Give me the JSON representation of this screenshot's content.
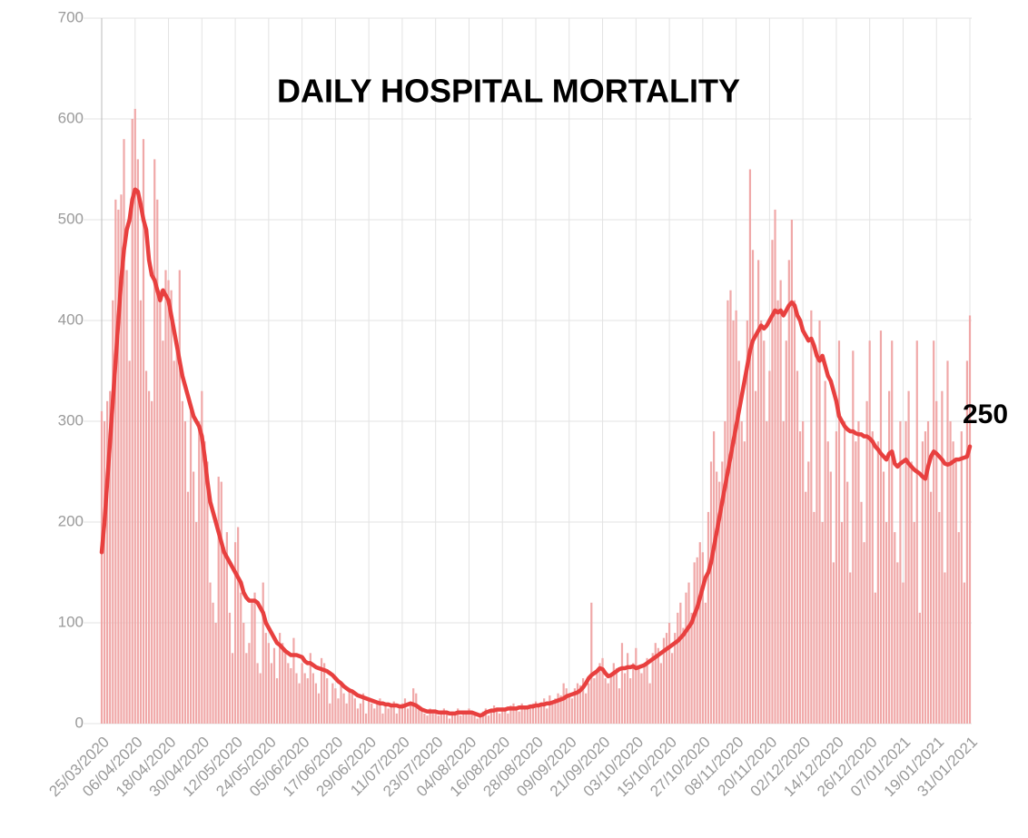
{
  "chart_data": {
    "type": "bar",
    "title": "DAILY HOSPITAL MORTALITY",
    "annotation": "250",
    "categories": [
      "25/03/2020",
      null,
      null,
      null,
      null,
      null,
      null,
      null,
      null,
      null,
      null,
      null,
      "06/04/2020",
      null,
      null,
      null,
      null,
      null,
      null,
      null,
      null,
      null,
      null,
      null,
      "18/04/2020",
      null,
      null,
      null,
      null,
      null,
      null,
      null,
      null,
      null,
      null,
      null,
      "30/04/2020",
      null,
      null,
      null,
      null,
      null,
      null,
      null,
      null,
      null,
      null,
      null,
      "12/05/2020",
      null,
      null,
      null,
      null,
      null,
      null,
      null,
      null,
      null,
      null,
      null,
      "24/05/2020",
      null,
      null,
      null,
      null,
      null,
      null,
      null,
      null,
      null,
      null,
      null,
      "05/06/2020",
      null,
      null,
      null,
      null,
      null,
      null,
      null,
      null,
      null,
      null,
      null,
      "17/06/2020",
      null,
      null,
      null,
      null,
      null,
      null,
      null,
      null,
      null,
      null,
      null,
      "29/06/2020",
      null,
      null,
      null,
      null,
      null,
      null,
      null,
      null,
      null,
      null,
      null,
      "11/07/2020",
      null,
      null,
      null,
      null,
      null,
      null,
      null,
      null,
      null,
      null,
      null,
      "23/07/2020",
      null,
      null,
      null,
      null,
      null,
      null,
      null,
      null,
      null,
      null,
      null,
      "04/08/2020",
      null,
      null,
      null,
      null,
      null,
      null,
      null,
      null,
      null,
      null,
      null,
      "16/08/2020",
      null,
      null,
      null,
      null,
      null,
      null,
      null,
      null,
      null,
      null,
      null,
      "28/08/2020",
      null,
      null,
      null,
      null,
      null,
      null,
      null,
      null,
      null,
      null,
      null,
      "09/09/2020",
      null,
      null,
      null,
      null,
      null,
      null,
      null,
      null,
      null,
      null,
      null,
      "21/09/2020",
      null,
      null,
      null,
      null,
      null,
      null,
      null,
      null,
      null,
      null,
      null,
      "03/10/2020",
      null,
      null,
      null,
      null,
      null,
      null,
      null,
      null,
      null,
      null,
      null,
      "15/10/2020",
      null,
      null,
      null,
      null,
      null,
      null,
      null,
      null,
      null,
      null,
      null,
      "27/10/2020",
      null,
      null,
      null,
      null,
      null,
      null,
      null,
      null,
      null,
      null,
      null,
      "08/11/2020",
      null,
      null,
      null,
      null,
      null,
      null,
      null,
      null,
      null,
      null,
      null,
      "20/11/2020",
      null,
      null,
      null,
      null,
      null,
      null,
      null,
      null,
      null,
      null,
      null,
      "02/12/2020",
      null,
      null,
      null,
      null,
      null,
      null,
      null,
      null,
      null,
      null,
      null,
      "14/12/2020",
      null,
      null,
      null,
      null,
      null,
      null,
      null,
      null,
      null,
      null,
      null,
      "26/12/2020",
      null,
      null,
      null,
      null,
      null,
      null,
      null,
      null,
      null,
      null,
      null,
      "07/01/2021",
      null,
      null,
      null,
      null,
      null,
      null,
      null,
      null,
      null,
      null,
      null,
      "19/01/2021",
      null,
      null,
      null,
      null,
      null,
      null,
      null,
      null,
      null,
      null,
      null,
      "31/01/2021"
    ],
    "series": [
      {
        "type": "bar",
        "color": "#f0a8a8",
        "values": [
          310,
          300,
          320,
          330,
          420,
          520,
          510,
          525,
          580,
          450,
          360,
          600,
          610,
          560,
          420,
          580,
          350,
          330,
          320,
          560,
          520,
          430,
          380,
          450,
          440,
          430,
          360,
          380,
          450,
          320,
          300,
          230,
          310,
          250,
          200,
          300,
          330,
          280,
          260,
          140,
          120,
          100,
          245,
          240,
          175,
          190,
          110,
          70,
          180,
          195,
          130,
          100,
          70,
          80,
          120,
          130,
          60,
          50,
          140,
          90,
          80,
          60,
          75,
          45,
          90,
          80,
          70,
          60,
          55,
          85,
          50,
          40,
          60,
          50,
          45,
          70,
          50,
          40,
          30,
          65,
          60,
          45,
          20,
          40,
          35,
          25,
          40,
          30,
          20,
          35,
          30,
          25,
          15,
          20,
          30,
          10,
          25,
          20,
          15,
          20,
          25,
          10,
          20,
          15,
          18,
          22,
          10,
          15,
          20,
          25,
          15,
          20,
          35,
          30,
          15,
          12,
          10,
          8,
          15,
          10,
          12,
          8,
          10,
          15,
          10,
          5,
          12,
          10,
          15,
          8,
          10,
          12,
          15,
          10,
          8,
          5,
          10,
          12,
          15,
          8,
          12,
          18,
          15,
          10,
          16,
          14,
          10,
          18,
          20,
          15,
          12,
          20,
          14,
          18,
          15,
          20,
          22,
          18,
          20,
          25,
          15,
          28,
          20,
          25,
          30,
          28,
          40,
          35,
          30,
          25,
          35,
          40,
          38,
          45,
          30,
          40,
          120,
          45,
          50,
          60,
          65,
          45,
          40,
          50,
          60,
          55,
          35,
          80,
          50,
          70,
          45,
          60,
          75,
          55,
          50,
          60,
          65,
          40,
          70,
          80,
          75,
          60,
          85,
          90,
          100,
          70,
          90,
          110,
          120,
          95,
          130,
          140,
          110,
          160,
          165,
          180,
          170,
          120,
          210,
          260,
          290,
          250,
          240,
          260,
          300,
          420,
          430,
          400,
          410,
          360,
          300,
          280,
          400,
          550,
          470,
          330,
          460,
          400,
          380,
          300,
          350,
          480,
          510,
          420,
          440,
          300,
          380,
          460,
          500,
          420,
          350,
          290,
          300,
          230,
          260,
          410,
          210,
          370,
          400,
          200,
          340,
          280,
          250,
          160,
          290,
          380,
          200,
          300,
          240,
          150,
          370,
          280,
          300,
          220,
          180,
          320,
          380,
          290,
          130,
          280,
          390,
          250,
          200,
          330,
          380,
          190,
          160,
          300,
          140,
          300,
          330,
          260,
          200,
          380,
          110,
          280,
          290,
          300,
          230,
          380,
          320,
          210,
          330,
          150,
          360,
          300,
          280,
          260,
          190,
          290,
          140,
          360,
          405
        ]
      },
      {
        "type": "line",
        "color": "#e8403f",
        "values": [
          170,
          200,
          240,
          280,
          320,
          360,
          400,
          440,
          470,
          490,
          500,
          520,
          530,
          528,
          515,
          500,
          490,
          460,
          445,
          440,
          430,
          420,
          430,
          425,
          420,
          405,
          390,
          375,
          360,
          345,
          335,
          325,
          315,
          305,
          300,
          295,
          285,
          265,
          240,
          220,
          210,
          200,
          190,
          180,
          170,
          165,
          160,
          155,
          150,
          145,
          140,
          130,
          125,
          122,
          122,
          122,
          120,
          115,
          110,
          100,
          95,
          90,
          85,
          80,
          78,
          75,
          72,
          70,
          68,
          68,
          68,
          67,
          66,
          62,
          60,
          60,
          58,
          56,
          55,
          54,
          53,
          52,
          50,
          48,
          45,
          42,
          40,
          37,
          35,
          33,
          32,
          30,
          28,
          27,
          26,
          25,
          24,
          23,
          22,
          21,
          20,
          20,
          19,
          19,
          18,
          18,
          18,
          17,
          17,
          18,
          19,
          20,
          19,
          18,
          16,
          14,
          13,
          12,
          12,
          12,
          12,
          11,
          11,
          11,
          11,
          10,
          10,
          10,
          11,
          11,
          11,
          11,
          11,
          11,
          10,
          9,
          8,
          9,
          11,
          12,
          13,
          13,
          14,
          14,
          14,
          14,
          15,
          15,
          15,
          15,
          16,
          16,
          16,
          16,
          17,
          17,
          18,
          18,
          19,
          19,
          20,
          20,
          21,
          22,
          23,
          24,
          25,
          27,
          28,
          29,
          30,
          31,
          33,
          36,
          40,
          45,
          48,
          50,
          52,
          55,
          54,
          50,
          47,
          48,
          50,
          52,
          54,
          55,
          55,
          56,
          56,
          57,
          55,
          56,
          57,
          58,
          60,
          62,
          64,
          66,
          68,
          70,
          72,
          74,
          76,
          78,
          80,
          82,
          85,
          88,
          92,
          96,
          100,
          108,
          115,
          125,
          135,
          145,
          150,
          160,
          175,
          190,
          205,
          220,
          235,
          250,
          265,
          280,
          295,
          310,
          325,
          340,
          355,
          370,
          380,
          385,
          390,
          395,
          392,
          395,
          400,
          405,
          410,
          408,
          410,
          405,
          410,
          415,
          418,
          415,
          405,
          400,
          390,
          385,
          380,
          382,
          375,
          365,
          360,
          365,
          355,
          345,
          340,
          330,
          320,
          305,
          300,
          295,
          292,
          290,
          290,
          288,
          287,
          287,
          285,
          285,
          283,
          280,
          275,
          272,
          268,
          265,
          262,
          268,
          270,
          258,
          255,
          258,
          260,
          262,
          258,
          255,
          252,
          250,
          248,
          245,
          243,
          255,
          265,
          270,
          268,
          265,
          262,
          258,
          257,
          258,
          260,
          262,
          262,
          263,
          264,
          265,
          275
        ]
      }
    ],
    "ylim": [
      0,
      700
    ],
    "yticks": [
      0,
      100,
      200,
      300,
      400,
      500,
      600,
      700
    ],
    "grid": true
  }
}
